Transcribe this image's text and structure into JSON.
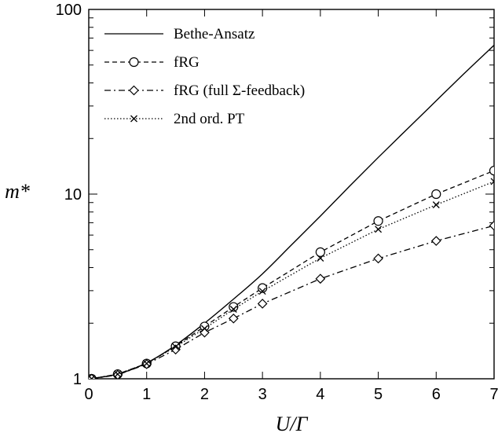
{
  "chart_data": {
    "type": "line",
    "xlabel": "U/Γ",
    "ylabel": "m*",
    "xlim": [
      0,
      7
    ],
    "ylim": [
      1,
      100
    ],
    "yscale": "log",
    "xticks": [
      "0",
      "1",
      "2",
      "3",
      "4",
      "5",
      "6",
      "7"
    ],
    "yticks": [
      "1",
      "10",
      "100"
    ],
    "legend_position": "top-left",
    "series": [
      {
        "name": "Bethe-Ansatz",
        "style": "solid",
        "marker": "none",
        "x": [
          0,
          0.5,
          1,
          1.5,
          2,
          2.5,
          3,
          3.5,
          4,
          4.5,
          5,
          5.5,
          6,
          6.5,
          7
        ],
        "y": [
          1.0,
          1.06,
          1.22,
          1.52,
          2.0,
          2.7,
          3.7,
          5.3,
          7.6,
          11.0,
          15.8,
          22.5,
          32.0,
          45.5,
          64.0
        ]
      },
      {
        "name": "fRG",
        "style": "dashed",
        "marker": "circle",
        "x": [
          0.05,
          0.5,
          1,
          1.5,
          2,
          2.5,
          3,
          4,
          5,
          6,
          7
        ],
        "y": [
          1.0,
          1.06,
          1.21,
          1.5,
          1.92,
          2.45,
          3.1,
          4.85,
          7.15,
          10.0,
          13.4
        ]
      },
      {
        "name": "fRG (full Σ-feedback)",
        "style": "dashdot",
        "marker": "diamond",
        "x": [
          0.05,
          0.5,
          1,
          1.5,
          2,
          2.5,
          3,
          4,
          5,
          6,
          7
        ],
        "y": [
          1.0,
          1.05,
          1.2,
          1.44,
          1.78,
          2.12,
          2.55,
          3.48,
          4.48,
          5.58,
          6.75
        ]
      },
      {
        "name": "2nd ord. PT",
        "style": "dotted",
        "marker": "cross",
        "x": [
          0.05,
          0.5,
          1,
          1.5,
          2,
          2.5,
          3,
          4,
          5,
          6,
          7
        ],
        "y": [
          1.0,
          1.06,
          1.21,
          1.49,
          1.87,
          2.38,
          2.98,
          4.5,
          6.45,
          8.75,
          11.7
        ]
      }
    ]
  }
}
